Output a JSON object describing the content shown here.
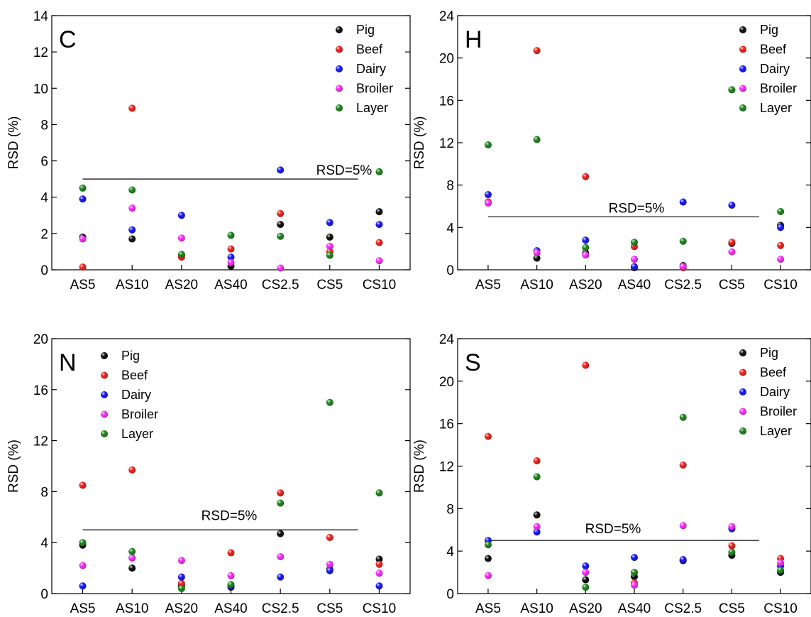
{
  "colors": {
    "Pig": "#000000",
    "Beef": "#e8140f",
    "Dairy": "#0a0af0",
    "Broiler": "#f51ef5",
    "Layer": "#0e7d0e"
  },
  "chart_data": [
    {
      "type": "scatter",
      "panel_label": "C",
      "ylabel": "RSD (%)",
      "categories": [
        "AS5",
        "AS10",
        "AS20",
        "AS40",
        "CS2.5",
        "CS5",
        "CS10"
      ],
      "ylim": [
        0,
        14
      ],
      "yticks": [
        0,
        2,
        4,
        6,
        8,
        10,
        12,
        14
      ],
      "reference_line": {
        "y": 5,
        "label": "RSD=5%"
      },
      "legend": "top-right",
      "series": [
        {
          "name": "Pig",
          "values": [
            1.8,
            1.7,
            0.8,
            0.2,
            2.5,
            1.8,
            3.2
          ]
        },
        {
          "name": "Beef",
          "values": [
            0.15,
            8.9,
            0.7,
            1.15,
            3.1,
            1.0,
            1.5
          ]
        },
        {
          "name": "Dairy",
          "values": [
            3.9,
            2.2,
            3.0,
            0.7,
            5.5,
            2.6,
            2.5
          ]
        },
        {
          "name": "Broiler",
          "values": [
            1.7,
            3.4,
            1.75,
            0.4,
            0.1,
            1.3,
            0.5
          ]
        },
        {
          "name": "Layer",
          "values": [
            4.5,
            4.4,
            0.85,
            1.9,
            1.85,
            0.8,
            5.4
          ]
        }
      ]
    },
    {
      "type": "scatter",
      "panel_label": "H",
      "ylabel": "RSD (%)",
      "categories": [
        "AS5",
        "AS10",
        "AS20",
        "AS40",
        "CS2.5",
        "CS5",
        "CS10"
      ],
      "ylim": [
        0,
        24
      ],
      "yticks": [
        0,
        4,
        8,
        12,
        16,
        20,
        24
      ],
      "reference_line": {
        "y": 5,
        "label": "RSD=5%"
      },
      "legend": "top-right",
      "series": [
        {
          "name": "Pig",
          "values": [
            6.4,
            1.1,
            1.6,
            0.2,
            0.4,
            2.5,
            4.2
          ]
        },
        {
          "name": "Beef",
          "values": [
            6.4,
            20.7,
            8.8,
            2.2,
            0.2,
            2.6,
            2.3
          ]
        },
        {
          "name": "Dairy",
          "values": [
            7.1,
            1.8,
            2.8,
            0.3,
            6.4,
            6.1,
            4.0
          ]
        },
        {
          "name": "Broiler",
          "values": [
            6.3,
            1.6,
            1.4,
            1.0,
            0.3,
            1.7,
            1.0
          ]
        },
        {
          "name": "Layer",
          "values": [
            11.8,
            12.3,
            2.1,
            2.6,
            2.7,
            17.0,
            5.5
          ]
        }
      ]
    },
    {
      "type": "scatter",
      "panel_label": "N",
      "ylabel": "RSD (%)",
      "categories": [
        "AS5",
        "AS10",
        "AS20",
        "AS40",
        "CS2.5",
        "CS5",
        "CS10"
      ],
      "ylim": [
        0,
        20
      ],
      "yticks": [
        0,
        4,
        8,
        12,
        16,
        20
      ],
      "reference_line": {
        "y": 5,
        "label": "RSD=5%"
      },
      "legend": "top-left",
      "series": [
        {
          "name": "Pig",
          "values": [
            3.8,
            2.0,
            0.6,
            0.5,
            4.7,
            1.9,
            2.7
          ]
        },
        {
          "name": "Beef",
          "values": [
            8.5,
            9.7,
            0.8,
            3.2,
            7.9,
            4.4,
            2.3
          ]
        },
        {
          "name": "Dairy",
          "values": [
            0.6,
            2.8,
            1.3,
            0.6,
            1.3,
            1.8,
            0.6
          ]
        },
        {
          "name": "Broiler",
          "values": [
            2.2,
            2.8,
            2.6,
            1.4,
            2.9,
            2.3,
            1.6
          ]
        },
        {
          "name": "Layer",
          "values": [
            4.0,
            3.3,
            0.4,
            0.7,
            7.1,
            15.0,
            7.9
          ]
        }
      ]
    },
    {
      "type": "scatter",
      "panel_label": "S",
      "ylabel": "RSD (%)",
      "categories": [
        "AS5",
        "AS10",
        "AS20",
        "AS40",
        "CS2.5",
        "CS5",
        "CS10"
      ],
      "ylim": [
        0,
        24
      ],
      "yticks": [
        0,
        4,
        8,
        12,
        16,
        20,
        24
      ],
      "reference_line": {
        "y": 5,
        "label": "RSD=5%"
      },
      "legend": "top-right",
      "series": [
        {
          "name": "Pig",
          "values": [
            3.3,
            7.4,
            1.3,
            1.6,
            3.1,
            3.6,
            2.0
          ]
        },
        {
          "name": "Beef",
          "values": [
            14.8,
            12.5,
            21.5,
            1.0,
            12.1,
            4.5,
            3.3
          ]
        },
        {
          "name": "Dairy",
          "values": [
            5.0,
            5.8,
            2.6,
            3.4,
            3.2,
            6.1,
            2.6
          ]
        },
        {
          "name": "Broiler",
          "values": [
            1.7,
            6.3,
            2.0,
            0.8,
            6.4,
            6.3,
            2.9
          ]
        },
        {
          "name": "Layer",
          "values": [
            4.6,
            11.0,
            0.6,
            2.0,
            16.6,
            3.9,
            2.2
          ]
        }
      ]
    }
  ]
}
